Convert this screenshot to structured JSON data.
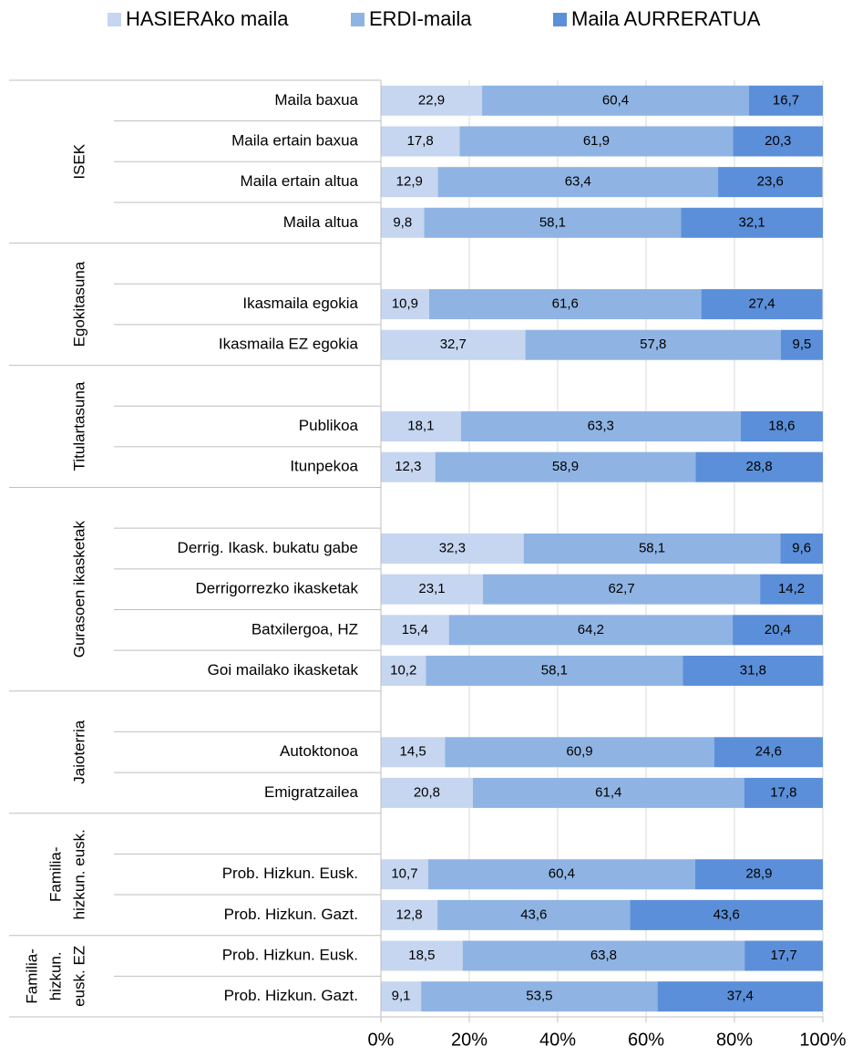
{
  "chart_data": {
    "type": "stacked_barh",
    "groups": [
      {
        "label": [
          "ISEK"
        ],
        "categories": [
          "Maila baxua",
          "Maila ertain baxua",
          "Maila ertain altua",
          "Maila altua"
        ]
      },
      {
        "label": [
          "Egokitasuna"
        ],
        "categories": [
          null,
          "Ikasmaila egokia",
          "Ikasmaila EZ egokia"
        ]
      },
      {
        "label": [
          "Titulartasuna"
        ],
        "categories": [
          null,
          "Publikoa",
          "Itunpekoa"
        ]
      },
      {
        "label": [
          "Gurasoen ikasketak"
        ],
        "categories": [
          null,
          "Derrig. Ikask. bukatu gabe",
          "Derrigorrezko ikasketak",
          "Batxilergoa, HZ",
          "Goi mailako ikasketak"
        ]
      },
      {
        "label": [
          "Jaioterria"
        ],
        "categories": [
          null,
          "Autoktonoa",
          "Emigratzailea"
        ]
      },
      {
        "label": [
          "Familia-",
          "hizkun. eusk."
        ],
        "categories": [
          null,
          "Prob. Hizkun. Eusk.",
          "Prob. Hizkun. Gazt."
        ]
      },
      {
        "label": [
          "Familia-",
          "hizkun.",
          "eusk. EZ"
        ],
        "categories": [
          "Prob. Hizkun. Eusk.",
          "Prob. Hizkun. Gazt."
        ]
      }
    ],
    "series": [
      {
        "name": "HASIERAko maila",
        "color": "#c6d6f0",
        "values": [
          22.9,
          17.8,
          12.9,
          9.8,
          null,
          10.9,
          32.7,
          null,
          18.1,
          12.3,
          null,
          32.3,
          23.1,
          15.4,
          10.2,
          null,
          14.5,
          20.8,
          null,
          10.7,
          12.8,
          18.5,
          9.1
        ],
        "value_labels": [
          "22,9",
          "17,8",
          "12,9",
          "9,8",
          null,
          "10,9",
          "32,7",
          null,
          "18,1",
          "12,3",
          null,
          "32,3",
          "23,1",
          "15,4",
          "10,2",
          null,
          "14,5",
          "20,8",
          null,
          "10,7",
          "12,8",
          "18,5",
          "9,1"
        ]
      },
      {
        "name": "ERDI-maila",
        "color": "#8fb4e3",
        "values": [
          60.4,
          61.9,
          63.4,
          58.1,
          null,
          61.6,
          57.8,
          null,
          63.3,
          58.9,
          null,
          58.1,
          62.7,
          64.2,
          58.1,
          null,
          60.9,
          61.4,
          null,
          60.4,
          43.6,
          63.8,
          53.5
        ],
        "value_labels": [
          "60,4",
          "61,9",
          "63,4",
          "58,1",
          null,
          "61,6",
          "57,8",
          null,
          "63,3",
          "58,9",
          null,
          "58,1",
          "62,7",
          "64,2",
          "58,1",
          null,
          "60,9",
          "61,4",
          null,
          "60,4",
          "43,6",
          "63,8",
          "53,5"
        ]
      },
      {
        "name": "Maila AURRERATUA",
        "color": "#5b8fd9",
        "values": [
          16.7,
          20.3,
          23.6,
          32.1,
          null,
          27.4,
          9.5,
          null,
          18.6,
          28.8,
          null,
          9.6,
          14.2,
          20.4,
          31.8,
          null,
          24.6,
          17.8,
          null,
          28.9,
          43.6,
          17.7,
          37.4
        ],
        "value_labels": [
          "16,7",
          "20,3",
          "23,6",
          "32,1",
          null,
          "27,4",
          "9,5",
          null,
          "18,6",
          "28,8",
          null,
          "9,6",
          "14,2",
          "20,4",
          "31,8",
          null,
          "24,6",
          "17,8",
          null,
          "28,9",
          "43,6",
          "17,7",
          "37,4"
        ]
      }
    ],
    "xlim": [
      0,
      100
    ],
    "xticks": [
      {
        "value": 0,
        "label": "0%"
      },
      {
        "value": 20,
        "label": "20%"
      },
      {
        "value": 40,
        "label": "40%"
      },
      {
        "value": 60,
        "label": "60%"
      },
      {
        "value": 80,
        "label": "80%"
      },
      {
        "value": 100,
        "label": "100%"
      }
    ],
    "grid": true,
    "legend": "top"
  }
}
